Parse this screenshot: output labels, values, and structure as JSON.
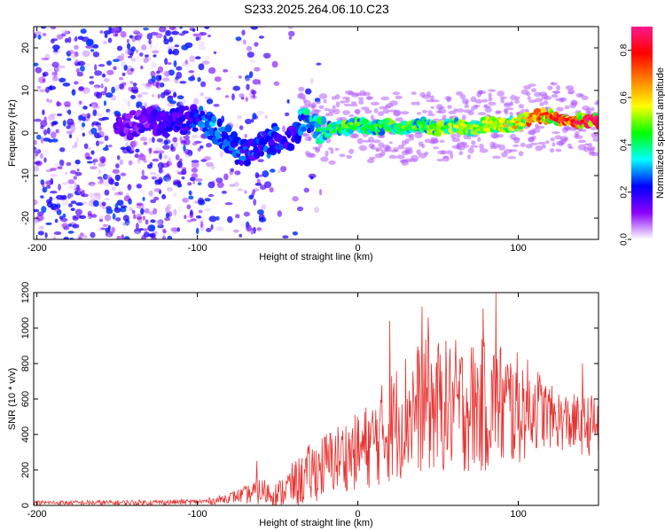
{
  "title": "S233.2025.264.06.10.C23",
  "chart_data": [
    {
      "type": "heatmap",
      "xlabel": "Height of straight line (km)",
      "ylabel": "Frequency (Hz)",
      "xlim": [
        -202,
        150
      ],
      "ylim": [
        -25,
        25
      ],
      "xticks": [
        -200,
        -100,
        0,
        100
      ],
      "yticks": [
        -20,
        -10,
        0,
        10,
        20
      ],
      "colorbar": {
        "label": "Normalized spectral amplitude",
        "range": [
          0.0,
          0.9
        ],
        "ticks": [
          "0.0",
          "0.2",
          "0.4",
          "0.6",
          "0.8"
        ],
        "colors": [
          "#ffffff",
          "#8a00ff",
          "#0000ff",
          "#00ffff",
          "#00ff00",
          "#ffff00",
          "#ff8000",
          "#ff0000",
          "#ff1a8c"
        ]
      },
      "ridge": {
        "x": [
          -150,
          -140,
          -130,
          -120,
          -110,
          -100,
          -92,
          -85,
          -80,
          -75,
          -70,
          -65,
          -60,
          -55,
          -50,
          -45,
          -40,
          -35,
          -30,
          -25,
          -20,
          -10,
          0,
          10,
          20,
          30,
          40,
          50,
          60,
          70,
          80,
          90,
          100,
          110,
          120,
          130,
          140,
          150
        ],
        "freq": [
          1,
          2,
          3,
          2,
          3,
          3,
          2,
          0,
          -2,
          -4,
          -4,
          -5,
          -3,
          -2,
          -1,
          -1,
          -2,
          3,
          2,
          1,
          1,
          1,
          2,
          1,
          2,
          1,
          2,
          1,
          2,
          1,
          2,
          2,
          2,
          4,
          4,
          3,
          3,
          3
        ],
        "amplitude": [
          0.15,
          0.15,
          0.18,
          0.2,
          0.2,
          0.25,
          0.3,
          0.3,
          0.3,
          0.3,
          0.25,
          0.25,
          0.25,
          0.25,
          0.25,
          0.2,
          0.2,
          0.3,
          0.4,
          0.4,
          0.45,
          0.45,
          0.45,
          0.45,
          0.45,
          0.45,
          0.45,
          0.5,
          0.5,
          0.55,
          0.55,
          0.55,
          0.6,
          0.7,
          0.75,
          0.75,
          0.8,
          0.8
        ]
      }
    },
    {
      "type": "line",
      "xlabel": "Height of straight line (km)",
      "ylabel": "SNR (10 * v/v)",
      "xlim": [
        -202,
        150
      ],
      "ylim": [
        0,
        1200
      ],
      "xticks": [
        -200,
        -100,
        0,
        100
      ],
      "yticks": [
        0,
        200,
        400,
        600,
        800,
        1000,
        1200
      ],
      "color": "#e8312f",
      "envelope": {
        "x": [
          -202,
          -150,
          -100,
          -90,
          -80,
          -70,
          -60,
          -50,
          -42,
          -35,
          -30,
          -20,
          -10,
          0,
          10,
          20,
          30,
          40,
          50,
          60,
          70,
          80,
          90,
          100,
          110,
          120,
          130,
          140,
          150
        ],
        "mean": [
          15,
          15,
          20,
          25,
          45,
          60,
          80,
          60,
          110,
          140,
          180,
          230,
          280,
          300,
          360,
          440,
          520,
          560,
          560,
          560,
          560,
          560,
          560,
          540,
          560,
          500,
          470,
          450,
          460
        ],
        "spread": [
          12,
          15,
          15,
          20,
          30,
          50,
          80,
          70,
          120,
          150,
          170,
          190,
          200,
          220,
          260,
          320,
          360,
          380,
          380,
          380,
          380,
          380,
          380,
          320,
          250,
          180,
          170,
          170,
          180
        ]
      },
      "peaks": [
        {
          "x": -63,
          "y": 250
        },
        {
          "x": 20,
          "y": 1040
        },
        {
          "x": 40,
          "y": 1120
        },
        {
          "x": 44,
          "y": 1060
        },
        {
          "x": 78,
          "y": 1110
        },
        {
          "x": 86,
          "y": 1200
        },
        {
          "x": 140,
          "y": 800
        }
      ]
    }
  ]
}
